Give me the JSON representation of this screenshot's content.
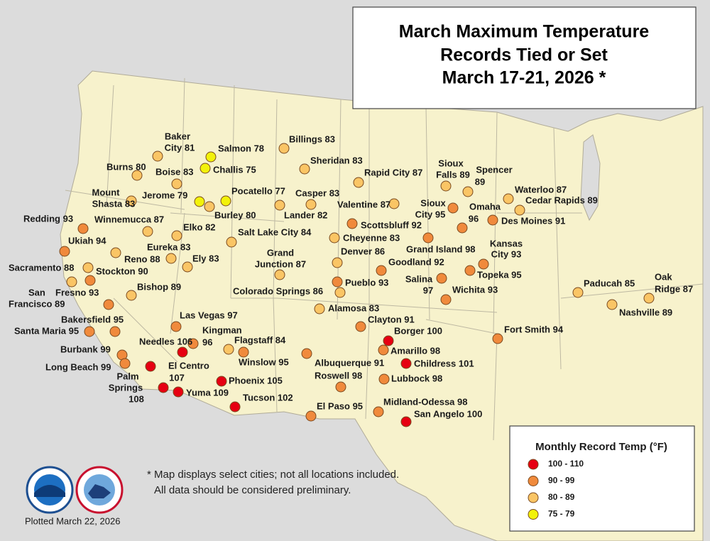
{
  "title": [
    "March Maximum Temperature",
    "Records Tied or Set",
    "March 17-21, 2026 *"
  ],
  "legend": {
    "title": "Monthly Record Temp (°F)",
    "items": [
      {
        "label": "100 - 110",
        "color": "#e60012"
      },
      {
        "label": "90 - 99",
        "color": "#f08a3c"
      },
      {
        "label": "80 - 89",
        "color": "#fac565"
      },
      {
        "label": "75 - 79",
        "color": "#f2f20a"
      }
    ]
  },
  "cities": [
    {
      "label": [
        "Baker",
        "City 81"
      ],
      "class": 2
    },
    {
      "label": [
        "Salmon 78"
      ],
      "class": 3
    },
    {
      "label": [
        "Billings 83"
      ],
      "class": 2
    },
    {
      "label": [
        "Burns 80"
      ],
      "class": 2
    },
    {
      "label": [
        "Boise 83"
      ],
      "class": 2
    },
    {
      "label": [
        "Challis 75"
      ],
      "class": 3
    },
    {
      "label": [
        "Sheridan 83"
      ],
      "class": 2
    },
    {
      "label": [
        "Rapid City 87"
      ],
      "class": 2
    },
    {
      "label": [
        "Sioux",
        "Falls 89"
      ],
      "class": 2
    },
    {
      "label": [
        "Spencer",
        "89"
      ],
      "class": 2
    },
    {
      "label": [
        "Mount",
        "Shasta 83"
      ],
      "class": 2
    },
    {
      "label": [
        "Jerome 79"
      ],
      "class": 3
    },
    {
      "label": [
        "Pocatello 77"
      ],
      "class": 3
    },
    {
      "label": [
        "Casper 83"
      ],
      "class": 2
    },
    {
      "label": [
        "Waterloo 87"
      ],
      "class": 2
    },
    {
      "label": [
        "Burley 80"
      ],
      "class": 2
    },
    {
      "label": [
        "Lander 82"
      ],
      "class": 2
    },
    {
      "label": [
        "Valentine 87"
      ],
      "class": 2
    },
    {
      "label": [
        "Sioux",
        "City 95"
      ],
      "class": 1
    },
    {
      "label": [
        "Omaha",
        "96"
      ],
      "class": 1
    },
    {
      "label": [
        "Cedar Rapids 89"
      ],
      "class": 2
    },
    {
      "label": [
        "Redding 93"
      ],
      "class": 1
    },
    {
      "label": [
        "Winnemucca 87"
      ],
      "class": 2
    },
    {
      "label": [
        "Elko 82"
      ],
      "class": 2
    },
    {
      "label": [
        "Scottsbluff 92"
      ],
      "class": 1
    },
    {
      "label": [
        "Des Moines 91"
      ],
      "class": 1
    },
    {
      "label": [
        "Salt Lake City 84"
      ],
      "class": 2
    },
    {
      "label": [
        "Cheyenne 83"
      ],
      "class": 2
    },
    {
      "label": [
        "Ukiah 94"
      ],
      "class": 1
    },
    {
      "label": [
        "Eureka 83"
      ],
      "class": 2
    },
    {
      "label": [
        "Grand Island 98"
      ],
      "class": 1
    },
    {
      "label": [
        "Kansas",
        "City 93"
      ],
      "class": 1
    },
    {
      "label": [
        "Denver 86"
      ],
      "class": 2
    },
    {
      "label": [
        "Reno 88"
      ],
      "class": 2
    },
    {
      "label": [
        "Ely 83"
      ],
      "class": 2
    },
    {
      "label": [
        "Grand",
        "Junction 87"
      ],
      "class": 2
    },
    {
      "label": [
        "Goodland 92"
      ],
      "class": 1
    },
    {
      "label": [
        "Sacramento 88"
      ],
      "class": 2
    },
    {
      "label": [
        "Stockton 90"
      ],
      "class": 1
    },
    {
      "label": [
        "Topeka 95"
      ],
      "class": 1
    },
    {
      "label": [
        "Salina",
        "97"
      ],
      "class": 1
    },
    {
      "label": [
        "San",
        "Francisco 89"
      ],
      "class": 2
    },
    {
      "label": [
        "Pueblo 93"
      ],
      "class": 1
    },
    {
      "label": [
        "Colorado Springs 86"
      ],
      "class": 2
    },
    {
      "label": [
        "Wichita 93"
      ],
      "class": 1
    },
    {
      "label": [
        "Bishop 89"
      ],
      "class": 2
    },
    {
      "label": [
        "Fresno 93"
      ],
      "class": 1
    },
    {
      "label": [
        "Paducah 85"
      ],
      "class": 2
    },
    {
      "label": [
        "Oak",
        "Ridge 87"
      ],
      "class": 2
    },
    {
      "label": [
        "Nashville 89"
      ],
      "class": 2
    },
    {
      "label": [
        "Alamosa 83"
      ],
      "class": 2
    },
    {
      "label": [
        "Bakersfield 95"
      ],
      "class": 1
    },
    {
      "label": [
        "Las Vegas 97"
      ],
      "class": 1
    },
    {
      "label": [
        "Clayton 91"
      ],
      "class": 1
    },
    {
      "label": [
        "Santa Maria 95"
      ],
      "class": 1
    },
    {
      "label": [
        "Kingman",
        "96"
      ],
      "class": 1
    },
    {
      "label": [
        "Fort Smith 94"
      ],
      "class": 1
    },
    {
      "label": [
        "Borger 100"
      ],
      "class": 0
    },
    {
      "label": [
        "Needles 106"
      ],
      "class": 0
    },
    {
      "label": [
        "Burbank 99"
      ],
      "class": 1
    },
    {
      "label": [
        "Flagstaff 84"
      ],
      "class": 2
    },
    {
      "label": [
        "Winslow 95"
      ],
      "class": 1
    },
    {
      "label": [
        "Albuquerque 91"
      ],
      "class": 1
    },
    {
      "label": [
        "Amarillo 98"
      ],
      "class": 1
    },
    {
      "label": [
        "Long Beach 99"
      ],
      "class": 1
    },
    {
      "label": [
        "Childress 101"
      ],
      "class": 0
    },
    {
      "label": [
        "Palm",
        "Springs",
        "108"
      ],
      "class": 0
    },
    {
      "label": [
        "El Centro",
        "107"
      ],
      "class": 0
    },
    {
      "label": [
        "Phoenix 105"
      ],
      "class": 0
    },
    {
      "label": [
        "Roswell 98"
      ],
      "class": 1
    },
    {
      "label": [
        "Lubbock 98"
      ],
      "class": 1
    },
    {
      "label": [
        "Yuma 109"
      ],
      "class": 0
    },
    {
      "label": [
        "Tucson 102"
      ],
      "class": 0
    },
    {
      "label": [
        "Midland-Odessa 98"
      ],
      "class": 1
    },
    {
      "label": [
        "El Paso 95"
      ],
      "class": 1
    },
    {
      "label": [
        "San Angelo 100"
      ],
      "class": 0
    }
  ],
  "footnote": [
    "* Map displays select cities; not all locations included.",
    "All data should be considered preliminary."
  ],
  "plotted": "Plotted March 22, 2026"
}
